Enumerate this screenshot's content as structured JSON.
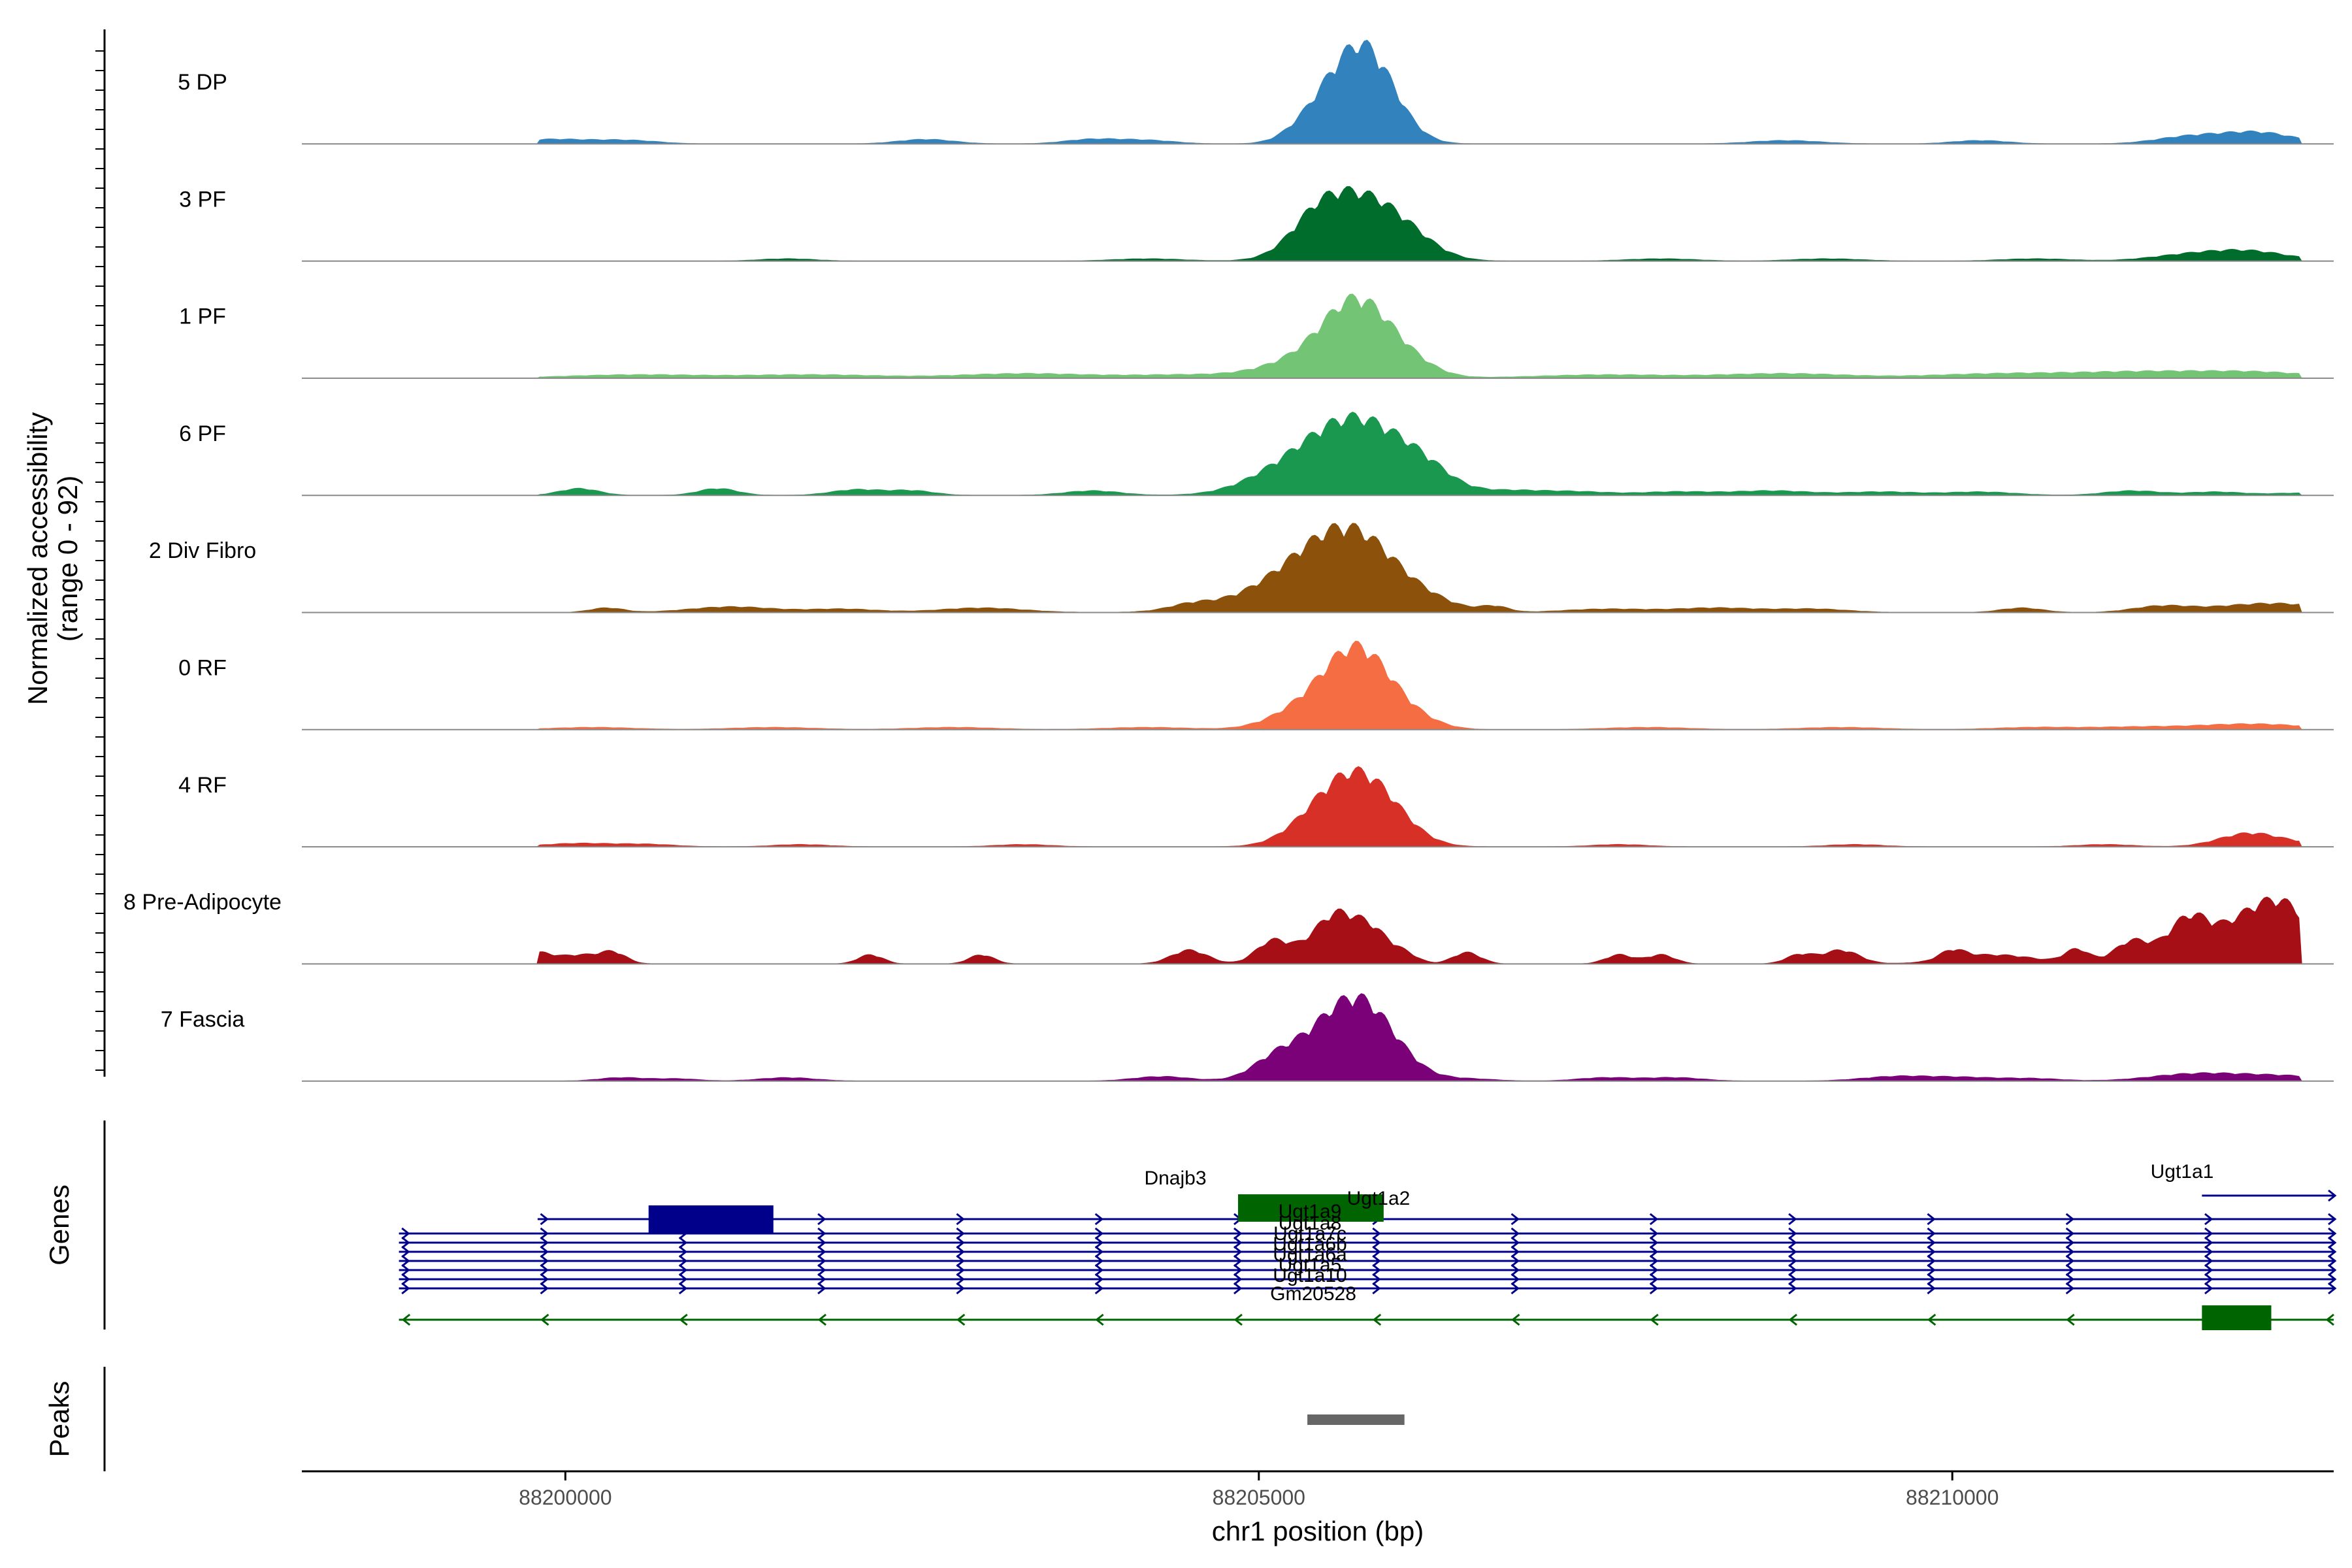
{
  "chart_data": {
    "type": "area",
    "region": {
      "chromosome": "chr1",
      "start": 88198100,
      "end": 88212750
    },
    "y_axis": {
      "title_line1": "Normalized accessibility",
      "title_line2": "(range 0 - 92)",
      "range": [
        0,
        92
      ]
    },
    "x_axis": {
      "title": "chr1 position (bp)",
      "ticks": [
        {
          "value": 88200000,
          "label": "88200000"
        },
        {
          "value": 88205000,
          "label": "88205000"
        },
        {
          "value": 88210000,
          "label": "88210000"
        }
      ]
    },
    "tracks": [
      {
        "name": "5 DP",
        "color": "#3182bd",
        "peaks": [
          [
            88205750,
            85,
            220
          ],
          [
            88205400,
            18,
            180
          ],
          [
            88212200,
            10,
            260
          ],
          [
            88211700,
            6,
            240
          ],
          [
            88202600,
            4,
            200
          ],
          [
            88203800,
            4,
            200
          ],
          [
            88208800,
            3,
            250
          ],
          [
            88200100,
            3,
            300
          ],
          [
            88204200,
            3,
            200
          ],
          [
            88210200,
            3,
            200
          ],
          [
            88199800,
            2,
            200
          ],
          [
            88200500,
            2,
            200
          ]
        ]
      },
      {
        "name": "3 PF",
        "color": "#006d2c",
        "peaks": [
          [
            88205720,
            56,
            300
          ],
          [
            88205400,
            18,
            180
          ],
          [
            88206100,
            8,
            200
          ],
          [
            88212150,
            8,
            280
          ],
          [
            88211700,
            5,
            280
          ],
          [
            88201600,
            2,
            200
          ],
          [
            88204200,
            2,
            250
          ],
          [
            88207900,
            2,
            250
          ],
          [
            88209100,
            2,
            250
          ],
          [
            88210600,
            2,
            250
          ]
        ]
      },
      {
        "name": "1 PF",
        "color": "#74c476",
        "peaks": [
          [
            88205720,
            62,
            240
          ],
          [
            88205350,
            15,
            300
          ],
          [
            88206100,
            9,
            200
          ],
          [
            88212200,
            5,
            400
          ],
          [
            88211500,
            4,
            400
          ],
          [
            88200500,
            3,
            500
          ],
          [
            88201800,
            3,
            500
          ],
          [
            88203300,
            4,
            450
          ],
          [
            88204500,
            3,
            450
          ],
          [
            88207500,
            3,
            500
          ],
          [
            88208800,
            4,
            450
          ],
          [
            88210200,
            3,
            450
          ],
          [
            88210900,
            3,
            450
          ]
        ]
      },
      {
        "name": "6 PF",
        "color": "#1a9850",
        "peaks": [
          [
            88205720,
            64,
            330
          ],
          [
            88205200,
            18,
            300
          ],
          [
            88206200,
            14,
            200
          ],
          [
            88200100,
            6,
            140
          ],
          [
            88201100,
            6,
            140
          ],
          [
            88202100,
            5,
            180
          ],
          [
            88202500,
            4,
            160
          ],
          [
            88203800,
            4,
            200
          ],
          [
            88206800,
            4,
            250
          ],
          [
            88207300,
            3,
            250
          ],
          [
            88208000,
            3,
            250
          ],
          [
            88208700,
            4,
            300
          ],
          [
            88209500,
            3,
            250
          ],
          [
            88210200,
            3,
            250
          ],
          [
            88211300,
            4,
            200
          ],
          [
            88211900,
            3,
            200
          ],
          [
            88212500,
            2,
            200
          ]
        ]
      },
      {
        "name": "2 Div Fibro",
        "color": "#8c510a",
        "peaks": [
          [
            88205700,
            64,
            320
          ],
          [
            88205300,
            22,
            300
          ],
          [
            88204900,
            8,
            350
          ],
          [
            88204500,
            4,
            150
          ],
          [
            88206300,
            4,
            200
          ],
          [
            88206700,
            5,
            100
          ],
          [
            88200300,
            4,
            120
          ],
          [
            88201200,
            5,
            300
          ],
          [
            88202000,
            3,
            250
          ],
          [
            88203000,
            4,
            300
          ],
          [
            88207500,
            3,
            300
          ],
          [
            88208300,
            4,
            300
          ],
          [
            88209000,
            3,
            250
          ],
          [
            88210500,
            4,
            150
          ],
          [
            88211500,
            5,
            200
          ],
          [
            88212300,
            8,
            400
          ]
        ]
      },
      {
        "name": "0 RF",
        "color": "#f46d43",
        "peaks": [
          [
            88205720,
            66,
            230
          ],
          [
            88205350,
            18,
            250
          ],
          [
            88206100,
            8,
            200
          ],
          [
            88212150,
            5,
            400
          ],
          [
            88200200,
            2,
            300
          ],
          [
            88201500,
            2,
            300
          ],
          [
            88202800,
            2,
            300
          ],
          [
            88204200,
            2,
            300
          ],
          [
            88207800,
            2,
            300
          ],
          [
            88209200,
            2,
            300
          ],
          [
            88210600,
            2,
            300
          ],
          [
            88211300,
            2,
            300
          ]
        ]
      },
      {
        "name": "4 RF",
        "color": "#d73027",
        "peaks": [
          [
            88205720,
            59,
            250
          ],
          [
            88205400,
            15,
            220
          ],
          [
            88206000,
            6,
            200
          ],
          [
            88212150,
            12,
            220
          ],
          [
            88200100,
            3,
            250
          ],
          [
            88200600,
            2,
            200
          ],
          [
            88201700,
            2,
            200
          ],
          [
            88203300,
            2,
            200
          ],
          [
            88207600,
            2,
            200
          ],
          [
            88209300,
            2,
            200
          ],
          [
            88211100,
            2,
            200
          ],
          [
            88212550,
            2,
            150
          ]
        ]
      },
      {
        "name": "8 Pre-Adipocyte",
        "color": "#a50f15",
        "peaks": [
          [
            88205550,
            38,
            130
          ],
          [
            88205800,
            30,
            130
          ],
          [
            88205100,
            20,
            120
          ],
          [
            88205350,
            10,
            120
          ],
          [
            88206050,
            8,
            100
          ],
          [
            88211700,
            38,
            150
          ],
          [
            88212150,
            40,
            220
          ],
          [
            88212450,
            35,
            180
          ],
          [
            88211300,
            20,
            130
          ],
          [
            88210900,
            12,
            90
          ],
          [
            88199800,
            8,
            90
          ],
          [
            88200100,
            8,
            180
          ],
          [
            88200350,
            8,
            90
          ],
          [
            88202200,
            8,
            90
          ],
          [
            88203000,
            8,
            90
          ],
          [
            88204500,
            12,
            130
          ],
          [
            88206500,
            10,
            100
          ],
          [
            88207600,
            8,
            100
          ],
          [
            88207900,
            8,
            100
          ],
          [
            88208900,
            8,
            100
          ],
          [
            88209200,
            12,
            130
          ],
          [
            88210000,
            8,
            90
          ],
          [
            88210300,
            8,
            300
          ]
        ]
      },
      {
        "name": "7 Fascia",
        "color": "#7a0177",
        "peaks": [
          [
            88205720,
            64,
            240
          ],
          [
            88205350,
            22,
            250
          ],
          [
            88205100,
            10,
            160
          ],
          [
            88206000,
            6,
            200
          ],
          [
            88204300,
            4,
            200
          ],
          [
            88211700,
            5,
            300
          ],
          [
            88212300,
            5,
            400
          ],
          [
            88200400,
            3,
            160
          ],
          [
            88200800,
            2,
            160
          ],
          [
            88201600,
            3,
            200
          ],
          [
            88206500,
            2,
            200
          ],
          [
            88207500,
            3,
            200
          ],
          [
            88208000,
            3,
            200
          ],
          [
            88209600,
            4,
            250
          ],
          [
            88210100,
            3,
            250
          ],
          [
            88210600,
            2,
            200
          ]
        ]
      }
    ],
    "genes_track": {
      "title": "Genes",
      "rows": [
        {
          "strand": "+",
          "color": "#00008b",
          "start": 88199800,
          "end": 88212750,
          "exons": [
            [
              88200600,
              88201500
            ]
          ]
        },
        {
          "strand": "+",
          "color": "#00008b",
          "start": 88198800,
          "end": 88212750,
          "exons": []
        },
        {
          "strand": "+",
          "color": "#00008b",
          "start": 88198800,
          "end": 88212750,
          "exons": []
        },
        {
          "strand": "+",
          "color": "#00008b",
          "start": 88198800,
          "end": 88212750,
          "exons": []
        },
        {
          "strand": "+",
          "color": "#00008b",
          "start": 88198800,
          "end": 88212750,
          "exons": []
        },
        {
          "strand": "+",
          "color": "#00008b",
          "start": 88198800,
          "end": 88212750,
          "exons": []
        },
        {
          "strand": "+",
          "color": "#00008b",
          "start": 88198800,
          "end": 88212750,
          "exons": []
        },
        {
          "strand": "+",
          "color": "#00008b",
          "start": 88198800,
          "end": 88212750,
          "exons": []
        },
        {
          "strand": "-",
          "color": "#006400",
          "start": 88198800,
          "end": 88212750,
          "exons": []
        }
      ],
      "extra_features": [
        {
          "name": "Dnajb3",
          "color": "#006400",
          "start": 88204850,
          "end": 88205900
        },
        {
          "name": "Ugt1a1 exon",
          "color": "#006400",
          "start": 88211800,
          "end": 88212300
        },
        {
          "name": "Ugt1a1 line",
          "color": "#00008b",
          "start": 88211800,
          "end": 88212750
        }
      ],
      "labels": [
        "Dnajb3",
        "Ugt1a2",
        "Ugt1a9",
        "Ugt1a8",
        "Ugt1a7c",
        "Ugt1a6b",
        "Ugt1a6a",
        "Ugt1a5",
        "Ugt1a10",
        "Gm20528",
        "Ugt1a1"
      ]
    },
    "peaks_track": {
      "title": "Peaks",
      "regions": [
        [
          88205350,
          88206050
        ]
      ],
      "color": "#666666"
    }
  }
}
